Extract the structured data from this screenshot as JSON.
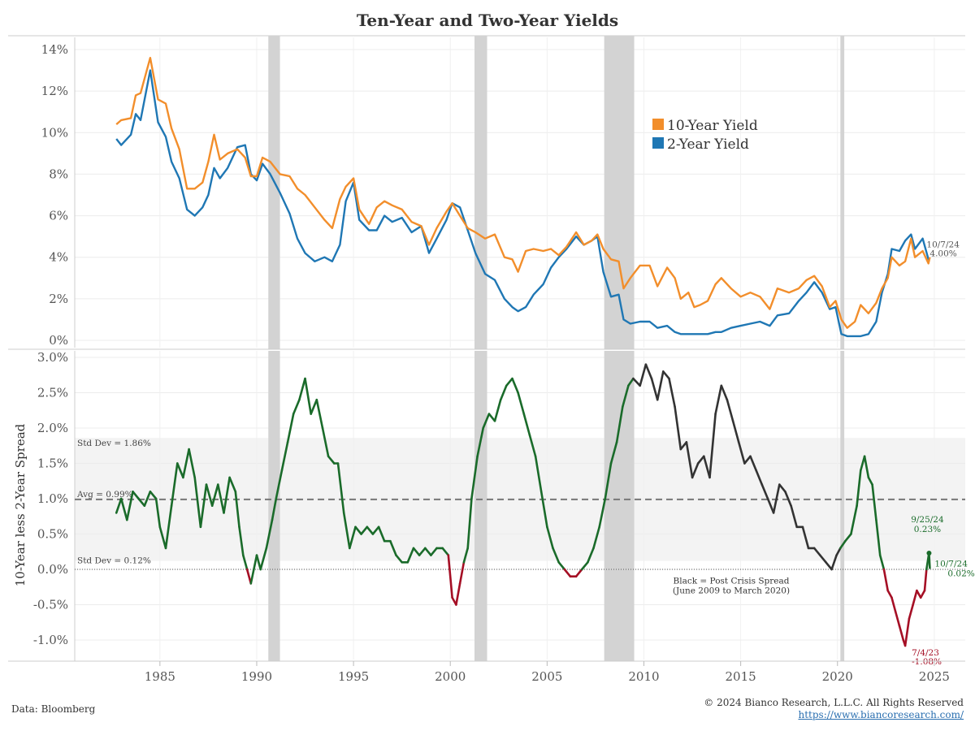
{
  "chart_data": [
    {
      "type": "line",
      "title": "Ten-Year and Two-Year Yields",
      "x_ticks": [
        1985,
        1990,
        1995,
        2000,
        2005,
        2010,
        2015,
        2020,
        2025
      ],
      "y_ticks": [
        "14%",
        "12%",
        "10%",
        "8%",
        "6%",
        "4%",
        "2%",
        "0%"
      ],
      "ylim": [
        0,
        14
      ],
      "xlim": [
        1980.6,
        2026.6
      ],
      "recessions": [
        [
          1990.6,
          1991.2
        ],
        [
          2001.25,
          2001.9
        ],
        [
          2007.95,
          2009.5
        ],
        [
          2020.15,
          2020.35
        ]
      ],
      "series": [
        {
          "name": "10-Year Yield",
          "color": "#f28e2b",
          "x": [
            1982.75,
            1983.0,
            1983.5,
            1983.75,
            1984.0,
            1984.5,
            1984.9,
            1985.3,
            1985.6,
            1986.0,
            1986.4,
            1986.8,
            1987.2,
            1987.5,
            1987.8,
            1988.1,
            1988.5,
            1989.0,
            1989.4,
            1989.7,
            1990.0,
            1990.3,
            1990.7,
            1991.2,
            1991.7,
            1992.1,
            1992.5,
            1993.0,
            1993.5,
            1993.9,
            1994.3,
            1994.6,
            1995.0,
            1995.3,
            1995.8,
            1996.2,
            1996.6,
            1997.0,
            1997.5,
            1998.0,
            1998.5,
            1998.9,
            1999.3,
            1999.8,
            2000.1,
            2000.5,
            2000.9,
            2001.3,
            2001.8,
            2002.3,
            2002.8,
            2003.2,
            2003.5,
            2003.9,
            2004.3,
            2004.8,
            2005.2,
            2005.6,
            2006.0,
            2006.5,
            2006.9,
            2007.3,
            2007.6,
            2007.9,
            2008.3,
            2008.7,
            2008.95,
            2009.3,
            2009.8,
            2010.3,
            2010.7,
            2011.2,
            2011.6,
            2011.9,
            2012.3,
            2012.6,
            2012.9,
            2013.3,
            2013.7,
            2014.0,
            2014.5,
            2015.0,
            2015.5,
            2016.0,
            2016.5,
            2016.9,
            2017.5,
            2018.0,
            2018.4,
            2018.8,
            2019.2,
            2019.6,
            2019.9,
            2020.2,
            2020.5,
            2020.9,
            2021.2,
            2021.6,
            2022.0,
            2022.3,
            2022.6,
            2022.8,
            2023.2,
            2023.5,
            2023.8,
            2024.0,
            2024.4,
            2024.7,
            2024.77
          ],
          "values": [
            10.4,
            10.6,
            10.7,
            11.8,
            11.9,
            13.6,
            11.6,
            11.4,
            10.2,
            9.2,
            7.3,
            7.3,
            7.6,
            8.6,
            9.9,
            8.7,
            9.0,
            9.2,
            8.8,
            7.9,
            7.9,
            8.8,
            8.6,
            8.0,
            7.9,
            7.3,
            7.0,
            6.4,
            5.8,
            5.4,
            6.8,
            7.4,
            7.8,
            6.3,
            5.6,
            6.4,
            6.7,
            6.5,
            6.3,
            5.7,
            5.5,
            4.6,
            5.4,
            6.2,
            6.6,
            6.0,
            5.4,
            5.2,
            4.9,
            5.1,
            4.0,
            3.9,
            3.3,
            4.3,
            4.4,
            4.3,
            4.4,
            4.1,
            4.5,
            5.2,
            4.6,
            4.8,
            5.1,
            4.4,
            3.9,
            3.8,
            2.5,
            3.0,
            3.6,
            3.6,
            2.6,
            3.5,
            3.0,
            2.0,
            2.3,
            1.6,
            1.7,
            1.9,
            2.7,
            3.0,
            2.5,
            2.1,
            2.3,
            2.1,
            1.5,
            2.5,
            2.3,
            2.5,
            2.9,
            3.1,
            2.6,
            1.6,
            1.9,
            1.0,
            0.6,
            0.9,
            1.7,
            1.3,
            1.8,
            2.5,
            3.0,
            4.0,
            3.6,
            3.8,
            4.9,
            4.0,
            4.3,
            3.7,
            4.0
          ]
        },
        {
          "name": "2-Year Yield",
          "color": "#1f77b4",
          "x": [
            1982.75,
            1983.0,
            1983.5,
            1983.75,
            1984.0,
            1984.5,
            1984.9,
            1985.3,
            1985.6,
            1986.0,
            1986.4,
            1986.8,
            1987.2,
            1987.5,
            1987.8,
            1988.1,
            1988.5,
            1989.0,
            1989.4,
            1989.7,
            1990.0,
            1990.3,
            1990.7,
            1991.2,
            1991.7,
            1992.1,
            1992.5,
            1993.0,
            1993.5,
            1993.9,
            1994.3,
            1994.6,
            1995.0,
            1995.3,
            1995.8,
            1996.2,
            1996.6,
            1997.0,
            1997.5,
            1998.0,
            1998.5,
            1998.9,
            1999.3,
            1999.8,
            2000.1,
            2000.5,
            2000.9,
            2001.3,
            2001.8,
            2002.3,
            2002.8,
            2003.2,
            2003.5,
            2003.9,
            2004.3,
            2004.8,
            2005.2,
            2005.6,
            2006.0,
            2006.5,
            2006.9,
            2007.3,
            2007.6,
            2007.9,
            2008.3,
            2008.7,
            2008.95,
            2009.3,
            2009.8,
            2010.3,
            2010.7,
            2011.2,
            2011.6,
            2011.9,
            2012.3,
            2012.6,
            2012.9,
            2013.3,
            2013.7,
            2014.0,
            2014.5,
            2015.0,
            2015.5,
            2016.0,
            2016.5,
            2016.9,
            2017.5,
            2018.0,
            2018.4,
            2018.8,
            2019.2,
            2019.6,
            2019.9,
            2020.2,
            2020.5,
            2020.9,
            2021.2,
            2021.6,
            2022.0,
            2022.3,
            2022.6,
            2022.8,
            2023.2,
            2023.5,
            2023.8,
            2024.0,
            2024.4,
            2024.7,
            2024.77
          ],
          "values": [
            9.7,
            9.4,
            9.9,
            10.9,
            10.6,
            13.0,
            10.5,
            9.8,
            8.6,
            7.8,
            6.3,
            6.0,
            6.4,
            7.0,
            8.3,
            7.8,
            8.3,
            9.3,
            9.4,
            8.0,
            7.7,
            8.5,
            8.0,
            7.1,
            6.1,
            4.9,
            4.2,
            3.8,
            4.0,
            3.8,
            4.6,
            6.7,
            7.6,
            5.8,
            5.3,
            5.3,
            6.0,
            5.7,
            5.9,
            5.2,
            5.5,
            4.2,
            4.9,
            5.8,
            6.6,
            6.4,
            5.3,
            4.2,
            3.2,
            2.9,
            2.0,
            1.6,
            1.4,
            1.6,
            2.2,
            2.7,
            3.5,
            4.0,
            4.4,
            5.0,
            4.6,
            4.8,
            5.0,
            3.3,
            2.1,
            2.2,
            1.0,
            0.8,
            0.9,
            0.9,
            0.6,
            0.7,
            0.4,
            0.3,
            0.3,
            0.3,
            0.3,
            0.3,
            0.4,
            0.4,
            0.6,
            0.7,
            0.8,
            0.9,
            0.7,
            1.2,
            1.3,
            1.9,
            2.3,
            2.8,
            2.3,
            1.5,
            1.6,
            0.3,
            0.2,
            0.2,
            0.2,
            0.3,
            0.9,
            2.3,
            3.2,
            4.4,
            4.3,
            4.8,
            5.1,
            4.4,
            4.9,
            3.9,
            3.9
          ]
        }
      ],
      "legend_position": "upper-middle",
      "annotations": [
        {
          "label": "10/7/24",
          "value": "4.00%",
          "x": 2024.77,
          "y": 4.0
        }
      ]
    },
    {
      "type": "line",
      "ylabel": "10-Year less 2-Year Spread",
      "x_ticks": [
        1985,
        1990,
        1995,
        2000,
        2005,
        2010,
        2015,
        2020,
        2025
      ],
      "y_ticks": [
        "3.0%",
        "2.5%",
        "2.0%",
        "1.5%",
        "1.0%",
        "0.5%",
        "0.0%",
        "-0.5%",
        "-1.0%"
      ],
      "ylim": [
        -1.3,
        3.1
      ],
      "xlim": [
        1980.6,
        2026.6
      ],
      "band": {
        "lower": 0.12,
        "upper": 1.86
      },
      "avg": 0.99,
      "band_labels": {
        "upper": "Std Dev = 1.86%",
        "avg": "Avg = 0.99%",
        "lower": "Std Dev = 0.12%"
      },
      "colors": {
        "positive": "#1a6b2a",
        "negative": "#a50f25",
        "post_crisis": "#333333"
      },
      "series": [
        {
          "x": [
            1982.75,
            1983.0,
            1983.3,
            1983.6,
            1983.9,
            1984.2,
            1984.5,
            1984.8,
            1985.0,
            1985.3,
            1985.6,
            1985.9,
            1986.2,
            1986.5,
            1986.8,
            1987.1,
            1987.4,
            1987.7,
            1988.0,
            1988.3,
            1988.6,
            1988.9,
            1989.1,
            1989.3,
            1989.5,
            1989.7,
            1990.0,
            1990.2,
            1990.5,
            1990.8,
            1991.0,
            1991.3,
            1991.6,
            1991.9,
            1992.2,
            1992.5,
            1992.8,
            1993.1,
            1993.4,
            1993.7,
            1994.0,
            1994.2,
            1994.5,
            1994.8,
            1995.1,
            1995.4,
            1995.7,
            1996.0,
            1996.3,
            1996.6,
            1996.9,
            1997.2,
            1997.5,
            1997.8,
            1998.1,
            1998.4,
            1998.7,
            1999.0,
            1999.3,
            1999.6,
            1999.9,
            2000.1,
            2000.3,
            2000.5,
            2000.7,
            2000.9,
            2001.1,
            2001.4,
            2001.7,
            2002.0,
            2002.3,
            2002.6,
            2002.9,
            2003.2,
            2003.5,
            2003.8,
            2004.1,
            2004.4,
            2004.7,
            2005.0,
            2005.3,
            2005.6,
            2005.9,
            2006.2,
            2006.5,
            2006.8,
            2007.1,
            2007.4,
            2007.7,
            2008.0,
            2008.3,
            2008.6,
            2008.9,
            2009.2,
            2009.45
          ],
          "values": [
            0.8,
            1.0,
            0.7,
            1.1,
            1.0,
            0.9,
            1.1,
            1.0,
            0.6,
            0.3,
            0.9,
            1.5,
            1.3,
            1.7,
            1.3,
            0.6,
            1.2,
            0.9,
            1.2,
            0.8,
            1.3,
            1.1,
            0.6,
            0.2,
            0.0,
            -0.2,
            0.2,
            0.0,
            0.3,
            0.7,
            1.0,
            1.4,
            1.8,
            2.2,
            2.4,
            2.7,
            2.2,
            2.4,
            2.0,
            1.6,
            1.5,
            1.5,
            0.8,
            0.3,
            0.6,
            0.5,
            0.6,
            0.5,
            0.6,
            0.4,
            0.4,
            0.2,
            0.1,
            0.1,
            0.3,
            0.2,
            0.3,
            0.2,
            0.3,
            0.3,
            0.2,
            -0.4,
            -0.5,
            -0.2,
            0.1,
            0.3,
            1.0,
            1.6,
            2.0,
            2.2,
            2.1,
            2.4,
            2.6,
            2.7,
            2.5,
            2.2,
            1.9,
            1.6,
            1.1,
            0.6,
            0.3,
            0.1,
            0.0,
            -0.1,
            -0.1,
            0.0,
            0.1,
            0.3,
            0.6,
            1.0,
            1.5,
            1.8,
            2.3,
            2.6,
            2.7
          ]
        },
        {
          "x": [
            2009.45,
            2009.8,
            2010.1,
            2010.4,
            2010.7,
            2011.0,
            2011.3,
            2011.6,
            2011.9,
            2012.2,
            2012.5,
            2012.8,
            2013.1,
            2013.4,
            2013.7,
            2014.0,
            2014.3,
            2014.6,
            2014.9,
            2015.2,
            2015.5,
            2015.8,
            2016.1,
            2016.4,
            2016.7,
            2017.0,
            2017.3,
            2017.6,
            2017.9,
            2018.2,
            2018.5,
            2018.8,
            2019.1,
            2019.4,
            2019.7,
            2019.95,
            2020.15
          ],
          "values": [
            2.7,
            2.6,
            2.9,
            2.7,
            2.4,
            2.8,
            2.7,
            2.3,
            1.7,
            1.8,
            1.3,
            1.5,
            1.6,
            1.3,
            2.2,
            2.6,
            2.4,
            2.1,
            1.8,
            1.5,
            1.6,
            1.4,
            1.2,
            1.0,
            0.8,
            1.2,
            1.1,
            0.9,
            0.6,
            0.6,
            0.3,
            0.3,
            0.2,
            0.1,
            0.0,
            0.2,
            0.3
          ]
        },
        {
          "x": [
            2020.15,
            2020.4,
            2020.7,
            2021.0,
            2021.2,
            2021.4,
            2021.6,
            2021.8,
            2022.0,
            2022.2,
            2022.4,
            2022.6,
            2022.8,
            2023.0,
            2023.2,
            2023.4,
            2023.5,
            2023.7,
            2023.9,
            2024.1,
            2024.3,
            2024.5,
            2024.6,
            2024.73,
            2024.77
          ],
          "values": [
            0.3,
            0.4,
            0.5,
            0.9,
            1.4,
            1.6,
            1.3,
            1.2,
            0.7,
            0.2,
            0.0,
            -0.3,
            -0.4,
            -0.6,
            -0.8,
            -1.0,
            -1.08,
            -0.7,
            -0.5,
            -0.3,
            -0.4,
            -0.3,
            0.0,
            0.23,
            0.02
          ]
        }
      ],
      "annotations": [
        {
          "label": "9/25/24",
          "value": "0.23%",
          "x": 2024.73,
          "y": 0.23,
          "color": "#1a6b2a"
        },
        {
          "label": "10/7/24",
          "value": "0.02%",
          "x": 2024.77,
          "y": 0.02,
          "color": "#1a6b2a"
        },
        {
          "label": "7/4/23",
          "value": "-1.08%",
          "x": 2023.5,
          "y": -1.08,
          "color": "#a50f25"
        }
      ],
      "note": [
        "Black = Post Crisis Spread",
        "(June 2009 to March 2020)"
      ]
    }
  ],
  "footer": {
    "source": "Data: Bloomberg",
    "copyright": "© 2024 Bianco Research, L.L.C. All Rights Reserved",
    "url": "https://www.biancoresearch.com/"
  }
}
